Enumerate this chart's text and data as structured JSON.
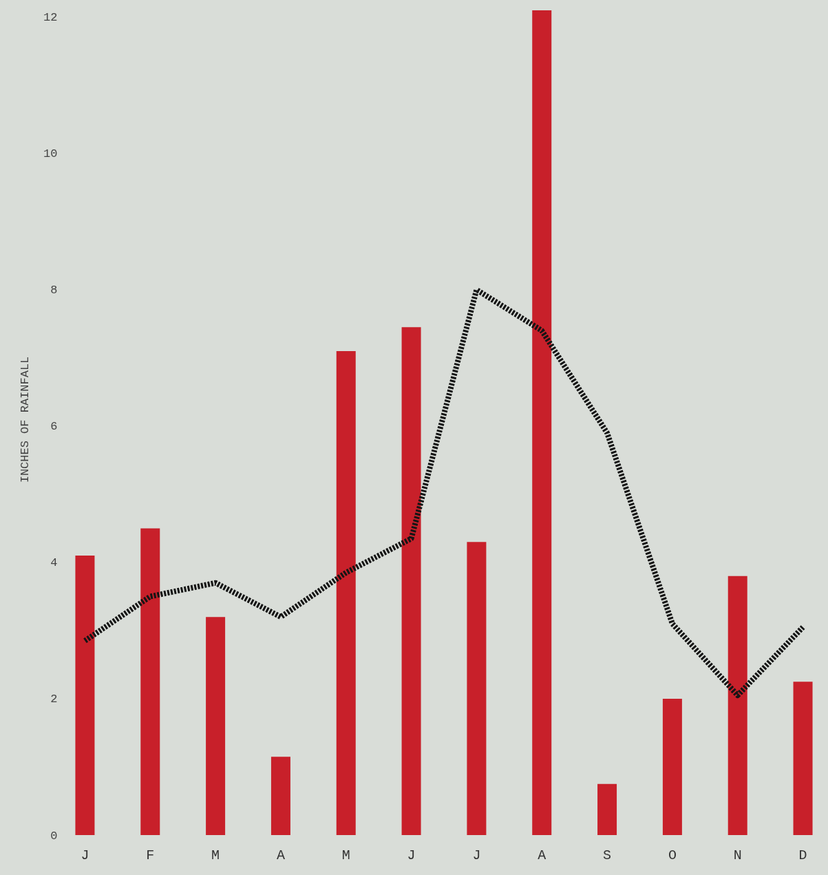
{
  "chart_data": {
    "type": "bar",
    "ylabel": "INCHES OF RAINFALL",
    "categories": [
      "J",
      "F",
      "M",
      "A",
      "M",
      "J",
      "J",
      "A",
      "S",
      "O",
      "N",
      "D"
    ],
    "series": [
      {
        "color": "#c8202a",
        "values": [
          4.1,
          4.5,
          3.2,
          1.15,
          7.1,
          7.45,
          4.3,
          12.1,
          0.75,
          2.0,
          3.8,
          2.25
        ]
      },
      {
        "type": "line",
        "color": "#151515",
        "line_style": "dotted",
        "values": [
          2.85,
          3.5,
          3.7,
          3.2,
          3.85,
          4.35,
          8.0,
          7.4,
          5.9,
          3.1,
          2.05,
          3.05
        ]
      }
    ],
    "ylim": [
      0,
      12.2
    ],
    "yticks": [
      0,
      2,
      4,
      6,
      8,
      10,
      12
    ],
    "grid": false
  }
}
